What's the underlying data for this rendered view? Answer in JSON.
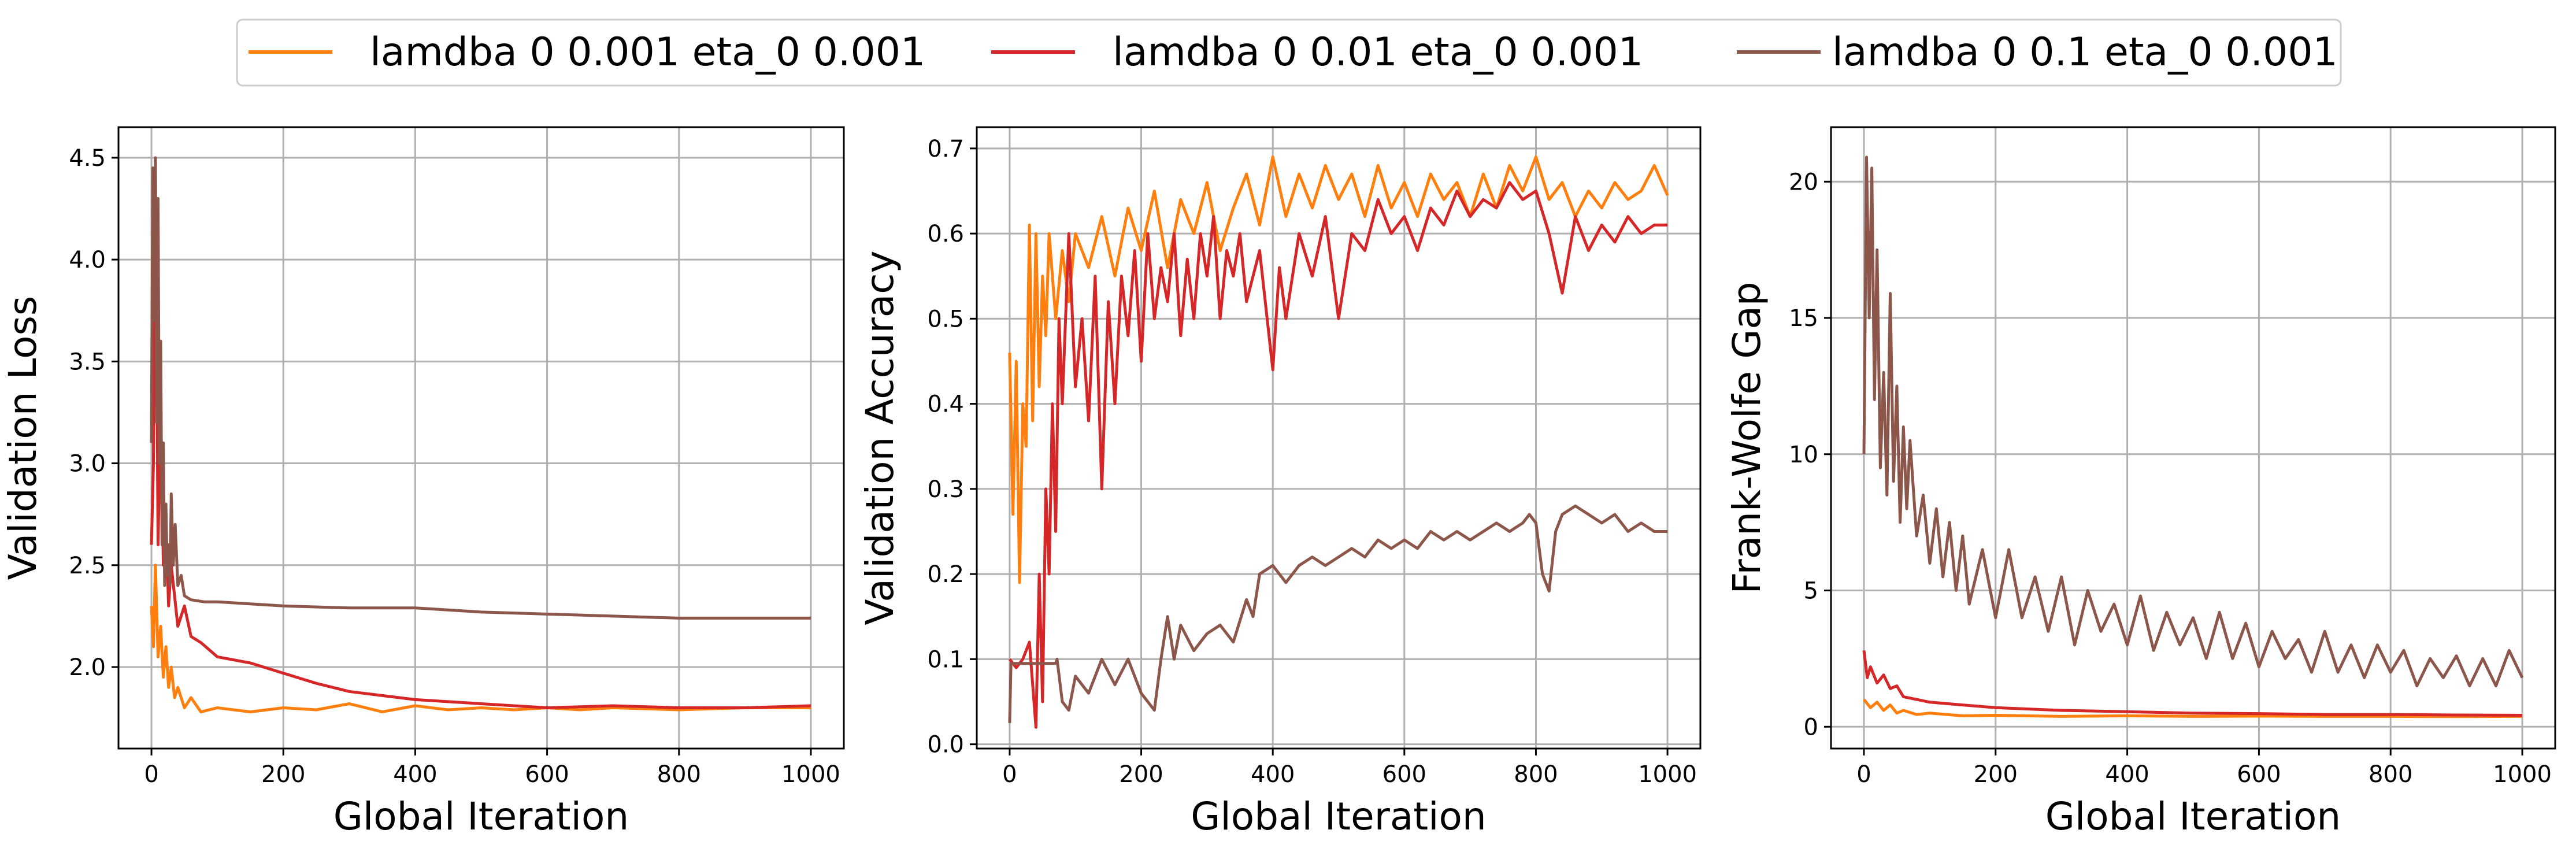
{
  "legend": {
    "placement": "top-center",
    "entries": [
      {
        "label": "lamdba 0 0.001 eta_0 0.001",
        "color": "#ff7f0e"
      },
      {
        "label": "lamdba 0 0.01 eta_0 0.001",
        "color": "#d62728"
      },
      {
        "label": "lamdba 0 0.1 eta_0 0.001",
        "color": "#8c564b"
      }
    ]
  },
  "chart_data": [
    {
      "type": "line",
      "xlabel": "Global Iteration",
      "ylabel": "Validation Loss",
      "xlim": [
        -50,
        1050
      ],
      "ylim": [
        1.6,
        4.65
      ],
      "xticks": [
        0,
        200,
        400,
        600,
        800,
        1000
      ],
      "yticks": [
        2.0,
        2.5,
        3.0,
        3.5,
        4.0,
        4.5
      ],
      "ytick_labels": [
        "2.0",
        "2.5",
        "3.0",
        "3.5",
        "4.0",
        "4.5"
      ],
      "grid": true,
      "series": [
        {
          "name": "lamdba 0 0.001 eta_0 0.001",
          "color": "#ff7f0e",
          "x": [
            0,
            3,
            6,
            10,
            14,
            18,
            22,
            26,
            30,
            35,
            40,
            50,
            60,
            75,
            100,
            150,
            200,
            250,
            300,
            350,
            400,
            450,
            500,
            550,
            600,
            650,
            700,
            800,
            900,
            1000
          ],
          "y": [
            2.3,
            2.1,
            2.5,
            2.05,
            2.2,
            1.95,
            2.1,
            1.9,
            2.0,
            1.85,
            1.9,
            1.8,
            1.85,
            1.78,
            1.8,
            1.78,
            1.8,
            1.79,
            1.82,
            1.78,
            1.81,
            1.79,
            1.8,
            1.79,
            1.8,
            1.79,
            1.8,
            1.79,
            1.8,
            1.8
          ]
        },
        {
          "name": "lamdba 0 0.01 eta_0 0.001",
          "color": "#d62728",
          "x": [
            0,
            3,
            6,
            10,
            14,
            18,
            22,
            26,
            30,
            40,
            50,
            60,
            75,
            100,
            150,
            200,
            250,
            300,
            350,
            400,
            450,
            500,
            550,
            600,
            700,
            800,
            900,
            1000
          ],
          "y": [
            2.6,
            3.0,
            4.45,
            2.6,
            3.3,
            2.5,
            2.7,
            2.3,
            2.5,
            2.2,
            2.3,
            2.15,
            2.12,
            2.05,
            2.02,
            1.97,
            1.92,
            1.88,
            1.86,
            1.84,
            1.83,
            1.82,
            1.81,
            1.8,
            1.81,
            1.8,
            1.8,
            1.81
          ]
        },
        {
          "name": "lamdba 0 0.1 eta_0 0.001",
          "color": "#8c564b",
          "x": [
            0,
            2,
            4,
            6,
            8,
            10,
            12,
            14,
            16,
            18,
            20,
            22,
            24,
            26,
            28,
            30,
            33,
            36,
            40,
            45,
            50,
            60,
            80,
            100,
            150,
            200,
            300,
            400,
            450,
            500,
            600,
            700,
            800,
            900,
            1000
          ],
          "y": [
            3.1,
            4.45,
            3.7,
            4.5,
            3.2,
            4.3,
            3.0,
            3.6,
            2.6,
            3.1,
            2.4,
            2.8,
            2.45,
            2.6,
            2.4,
            2.85,
            2.5,
            2.7,
            2.4,
            2.45,
            2.35,
            2.33,
            2.32,
            2.32,
            2.31,
            2.3,
            2.29,
            2.29,
            2.28,
            2.27,
            2.26,
            2.25,
            2.24,
            2.24,
            2.24
          ]
        }
      ]
    },
    {
      "type": "line",
      "xlabel": "Global Iteration",
      "ylabel": "Validation Accuracy",
      "xlim": [
        -50,
        1050
      ],
      "ylim": [
        -0.005,
        0.725
      ],
      "xticks": [
        0,
        200,
        400,
        600,
        800,
        1000
      ],
      "yticks": [
        0.0,
        0.1,
        0.2,
        0.3,
        0.4,
        0.5,
        0.6,
        0.7
      ],
      "ytick_labels": [
        "0.0",
        "0.1",
        "0.2",
        "0.3",
        "0.4",
        "0.5",
        "0.6",
        "0.7"
      ],
      "grid": true,
      "series": [
        {
          "name": "lamdba 0 0.001 eta_0 0.001",
          "color": "#ff7f0e",
          "x": [
            0,
            5,
            10,
            15,
            20,
            25,
            30,
            35,
            40,
            45,
            50,
            55,
            60,
            70,
            80,
            90,
            100,
            120,
            140,
            160,
            180,
            200,
            220,
            240,
            260,
            280,
            300,
            320,
            340,
            360,
            380,
            400,
            420,
            440,
            460,
            480,
            500,
            520,
            540,
            560,
            580,
            600,
            620,
            640,
            660,
            680,
            700,
            720,
            740,
            760,
            780,
            800,
            820,
            840,
            860,
            880,
            900,
            920,
            940,
            960,
            980,
            1000
          ],
          "y": [
            0.46,
            0.27,
            0.45,
            0.19,
            0.4,
            0.35,
            0.61,
            0.38,
            0.6,
            0.42,
            0.55,
            0.48,
            0.6,
            0.5,
            0.58,
            0.52,
            0.6,
            0.56,
            0.62,
            0.55,
            0.63,
            0.58,
            0.65,
            0.56,
            0.64,
            0.6,
            0.66,
            0.58,
            0.63,
            0.67,
            0.61,
            0.69,
            0.62,
            0.67,
            0.63,
            0.68,
            0.64,
            0.67,
            0.62,
            0.68,
            0.63,
            0.66,
            0.62,
            0.67,
            0.64,
            0.66,
            0.62,
            0.67,
            0.63,
            0.68,
            0.65,
            0.69,
            0.64,
            0.66,
            0.62,
            0.65,
            0.63,
            0.66,
            0.64,
            0.65,
            0.68,
            0.645
          ]
        },
        {
          "name": "lamdba 0 0.01 eta_0 0.001",
          "color": "#d62728",
          "x": [
            0,
            10,
            20,
            30,
            40,
            45,
            50,
            55,
            60,
            65,
            70,
            75,
            80,
            90,
            100,
            110,
            120,
            130,
            140,
            150,
            160,
            170,
            180,
            190,
            200,
            210,
            220,
            230,
            240,
            250,
            260,
            270,
            280,
            290,
            300,
            310,
            320,
            330,
            340,
            350,
            360,
            380,
            400,
            410,
            420,
            440,
            460,
            480,
            500,
            520,
            540,
            560,
            580,
            600,
            620,
            640,
            660,
            680,
            700,
            720,
            740,
            760,
            780,
            800,
            820,
            840,
            860,
            880,
            900,
            920,
            940,
            960,
            980,
            1000
          ],
          "y": [
            0.1,
            0.09,
            0.1,
            0.12,
            0.02,
            0.2,
            0.05,
            0.3,
            0.2,
            0.4,
            0.25,
            0.5,
            0.4,
            0.6,
            0.42,
            0.5,
            0.38,
            0.55,
            0.3,
            0.52,
            0.4,
            0.55,
            0.48,
            0.58,
            0.45,
            0.6,
            0.5,
            0.56,
            0.52,
            0.6,
            0.48,
            0.57,
            0.5,
            0.6,
            0.55,
            0.62,
            0.5,
            0.58,
            0.55,
            0.6,
            0.52,
            0.58,
            0.44,
            0.56,
            0.5,
            0.6,
            0.55,
            0.62,
            0.5,
            0.6,
            0.58,
            0.64,
            0.6,
            0.62,
            0.58,
            0.63,
            0.61,
            0.65,
            0.62,
            0.64,
            0.63,
            0.66,
            0.64,
            0.65,
            0.6,
            0.53,
            0.62,
            0.58,
            0.61,
            0.59,
            0.62,
            0.6,
            0.61,
            0.61
          ]
        },
        {
          "name": "lamdba 0 0.1 eta_0 0.001",
          "color": "#8c564b",
          "x": [
            0,
            2,
            5,
            70,
            72,
            80,
            90,
            100,
            120,
            140,
            160,
            180,
            200,
            220,
            230,
            240,
            250,
            260,
            280,
            300,
            320,
            340,
            360,
            370,
            380,
            400,
            420,
            440,
            460,
            480,
            500,
            520,
            540,
            560,
            580,
            600,
            620,
            640,
            660,
            680,
            700,
            720,
            740,
            760,
            780,
            790,
            800,
            810,
            820,
            830,
            840,
            860,
            880,
            900,
            920,
            940,
            960,
            980,
            1000
          ],
          "y": [
            0.025,
            0.095,
            0.095,
            0.095,
            0.1,
            0.05,
            0.04,
            0.08,
            0.06,
            0.1,
            0.07,
            0.1,
            0.06,
            0.04,
            0.1,
            0.15,
            0.1,
            0.14,
            0.11,
            0.13,
            0.14,
            0.12,
            0.17,
            0.15,
            0.2,
            0.21,
            0.19,
            0.21,
            0.22,
            0.21,
            0.22,
            0.23,
            0.22,
            0.24,
            0.23,
            0.24,
            0.23,
            0.25,
            0.24,
            0.25,
            0.24,
            0.25,
            0.26,
            0.25,
            0.26,
            0.27,
            0.26,
            0.2,
            0.18,
            0.25,
            0.27,
            0.28,
            0.27,
            0.26,
            0.27,
            0.25,
            0.26,
            0.25,
            0.25
          ]
        }
      ]
    },
    {
      "type": "line",
      "xlabel": "Global Iteration",
      "ylabel": "Frank-Wolfe Gap",
      "xlim": [
        -50,
        1050
      ],
      "ylim": [
        -0.8,
        22
      ],
      "xticks": [
        0,
        200,
        400,
        600,
        800,
        1000
      ],
      "yticks": [
        0,
        5,
        10,
        15,
        20
      ],
      "ytick_labels": [
        "0",
        "5",
        "10",
        "15",
        "20"
      ],
      "grid": true,
      "series": [
        {
          "name": "lamdba 0 0.001 eta_0 0.001",
          "color": "#ff7f0e",
          "x": [
            0,
            10,
            20,
            30,
            40,
            50,
            60,
            80,
            100,
            150,
            200,
            300,
            400,
            500,
            600,
            700,
            800,
            900,
            1000
          ],
          "y": [
            1.0,
            0.7,
            0.9,
            0.6,
            0.8,
            0.5,
            0.6,
            0.45,
            0.5,
            0.4,
            0.42,
            0.38,
            0.4,
            0.38,
            0.39,
            0.38,
            0.38,
            0.37,
            0.38
          ]
        },
        {
          "name": "lamdba 0 0.01 eta_0 0.001",
          "color": "#d62728",
          "x": [
            0,
            5,
            10,
            20,
            30,
            40,
            50,
            60,
            80,
            100,
            150,
            200,
            300,
            400,
            500,
            600,
            700,
            800,
            900,
            1000
          ],
          "y": [
            2.8,
            1.8,
            2.2,
            1.6,
            1.9,
            1.4,
            1.5,
            1.1,
            1.0,
            0.9,
            0.8,
            0.7,
            0.6,
            0.55,
            0.5,
            0.48,
            0.45,
            0.45,
            0.43,
            0.42
          ]
        },
        {
          "name": "lamdba 0 0.1 eta_0 0.001",
          "color": "#8c564b",
          "x": [
            0,
            4,
            8,
            12,
            16,
            20,
            25,
            30,
            35,
            40,
            45,
            50,
            55,
            60,
            65,
            70,
            80,
            90,
            100,
            110,
            120,
            130,
            140,
            150,
            160,
            180,
            200,
            220,
            240,
            260,
            280,
            300,
            320,
            340,
            360,
            380,
            400,
            420,
            440,
            460,
            480,
            500,
            520,
            540,
            560,
            580,
            600,
            620,
            640,
            660,
            680,
            700,
            720,
            740,
            760,
            780,
            800,
            820,
            840,
            860,
            880,
            900,
            920,
            940,
            960,
            980,
            1000
          ],
          "y": [
            10.0,
            20.9,
            15.0,
            20.5,
            12.0,
            17.5,
            9.5,
            13.0,
            8.5,
            15.9,
            9.0,
            12.5,
            7.5,
            11.0,
            8.0,
            10.5,
            7.0,
            8.5,
            6.0,
            8.0,
            5.5,
            7.5,
            5.0,
            7.0,
            4.5,
            6.5,
            4.0,
            6.5,
            4.0,
            5.5,
            3.5,
            5.5,
            3.0,
            5.0,
            3.5,
            4.5,
            3.0,
            4.8,
            2.8,
            4.2,
            3.0,
            4.0,
            2.5,
            4.2,
            2.5,
            3.8,
            2.2,
            3.5,
            2.5,
            3.2,
            2.0,
            3.5,
            2.0,
            3.0,
            1.8,
            3.0,
            2.0,
            2.8,
            1.5,
            2.5,
            1.8,
            2.6,
            1.5,
            2.5,
            1.5,
            2.8,
            1.8
          ]
        }
      ]
    }
  ]
}
